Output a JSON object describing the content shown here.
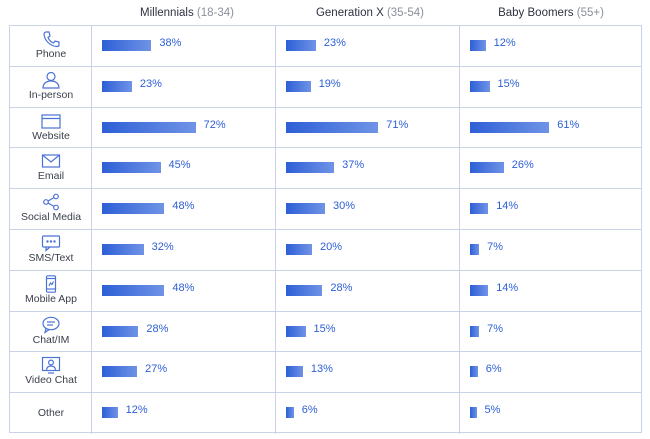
{
  "columns": [
    {
      "name": "Millennials",
      "age": "(18-34)"
    },
    {
      "name": "Generation X",
      "age": "(35-54)"
    },
    {
      "name": "Baby Boomers",
      "age": "(55+)"
    }
  ],
  "chart_data": {
    "type": "bar",
    "categories": [
      "Phone",
      "In-person",
      "Website",
      "Email",
      "Social Media",
      "SMS/Text",
      "Mobile App",
      "Chat/IM",
      "Video Chat",
      "Other"
    ],
    "series": [
      {
        "name": "Millennials (18-34)",
        "values": [
          38,
          23,
          72,
          45,
          48,
          32,
          48,
          28,
          27,
          12
        ]
      },
      {
        "name": "Generation X (35-54)",
        "values": [
          23,
          19,
          71,
          37,
          30,
          20,
          28,
          15,
          13,
          6
        ]
      },
      {
        "name": "Baby Boomers (55+)",
        "values": [
          12,
          15,
          61,
          26,
          14,
          7,
          14,
          7,
          6,
          5
        ]
      }
    ],
    "value_suffix": "%",
    "ylim": [
      0,
      100
    ]
  },
  "rows": [
    {
      "label": "Phone",
      "icon": "phone-icon",
      "values": [
        "38%",
        "23%",
        "12%"
      ]
    },
    {
      "label": "In-person",
      "icon": "person-icon",
      "values": [
        "23%",
        "19%",
        "15%"
      ]
    },
    {
      "label": "Website",
      "icon": "browser-window-icon",
      "values": [
        "72%",
        "71%",
        "61%"
      ]
    },
    {
      "label": "Email",
      "icon": "envelope-icon",
      "values": [
        "45%",
        "37%",
        "26%"
      ]
    },
    {
      "label": "Social Media",
      "icon": "share-icon",
      "values": [
        "48%",
        "30%",
        "14%"
      ]
    },
    {
      "label": "SMS/Text",
      "icon": "chat-bubble-icon",
      "values": [
        "32%",
        "20%",
        "7%"
      ]
    },
    {
      "label": "Mobile App",
      "icon": "mobile-phone-icon",
      "values": [
        "48%",
        "28%",
        "14%"
      ]
    },
    {
      "label": "Chat/IM",
      "icon": "speech-bubble-icon",
      "values": [
        "28%",
        "15%",
        "7%"
      ]
    },
    {
      "label": "Video Chat",
      "icon": "video-chat-icon",
      "values": [
        "27%",
        "13%",
        "6%"
      ]
    },
    {
      "label": "Other",
      "icon": "",
      "values": [
        "12%",
        "6%",
        "5%"
      ]
    }
  ],
  "colors": {
    "bar_start": "#2d5fd6",
    "bar_end": "#6f93e6",
    "icon": "#4b72d6",
    "grid": "#c9d3e6"
  }
}
